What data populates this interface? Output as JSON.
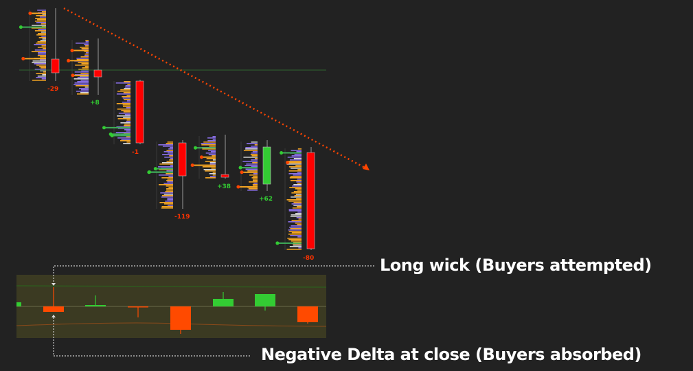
{
  "chart_data": {
    "type": "candlestick-footprint",
    "title": "",
    "axes_printed": false,
    "colors": {
      "background": "#222222",
      "bear_candle": "#ff0000",
      "bull_candle": "#33cc33",
      "profile_sell": "#f5a623",
      "profile_buy": "#8a6fe8",
      "profile_neutral": "#d9d9d9",
      "trendline": "#ff4500",
      "level_line": "#2e5a2e",
      "delta_panel_bg": "#3b3a22",
      "delta_negative": "#ff4a00",
      "delta_positive": "#33cc33"
    },
    "candles": [
      {
        "open": 147,
        "close": 137,
        "high": 184,
        "low": 131,
        "delta_label": "-29",
        "delta_sign": "neg"
      },
      {
        "open": 139,
        "close": 134,
        "high": 162,
        "low": 121,
        "delta_label": "+8",
        "delta_sign": "pos"
      },
      {
        "open": 131,
        "close": 86,
        "high": 132,
        "low": 85,
        "delta_label": "-1",
        "delta_sign": "neg"
      },
      {
        "open": 86,
        "close": 62,
        "high": 88,
        "low": 38,
        "delta_label": "-119",
        "delta_sign": "neg"
      },
      {
        "open": 63,
        "close": 61,
        "high": 92,
        "low": 60,
        "delta_label": "+38",
        "delta_sign": "pos"
      },
      {
        "open": 56,
        "close": 83,
        "high": 88,
        "low": 51,
        "delta_label": "+62",
        "delta_sign": "pos"
      },
      {
        "open": 79,
        "close": 9,
        "high": 83,
        "low": 8,
        "delta_label": "-80",
        "delta_sign": "neg"
      }
    ],
    "trendline": {
      "style": "dotted",
      "direction": "down",
      "arrow": true
    },
    "horizontal_level": 139,
    "delta_bars": [
      {
        "close": 6,
        "high": 6,
        "low": 0
      },
      {
        "close": -8,
        "high": 28,
        "low": -8
      },
      {
        "close": 2,
        "high": 16,
        "low": 0
      },
      {
        "close": -1,
        "high": 0,
        "low": -16
      },
      {
        "close": -34,
        "high": 0,
        "low": -40
      },
      {
        "close": 11,
        "high": 21,
        "low": 0
      },
      {
        "close": 18,
        "high": 18,
        "low": -6
      },
      {
        "close": -23,
        "high": 0,
        "low": -25
      }
    ]
  },
  "annotations": {
    "top": "Long wick (Buyers attempted)",
    "bottom": "Negative Delta at close (Buyers absorbed)"
  }
}
